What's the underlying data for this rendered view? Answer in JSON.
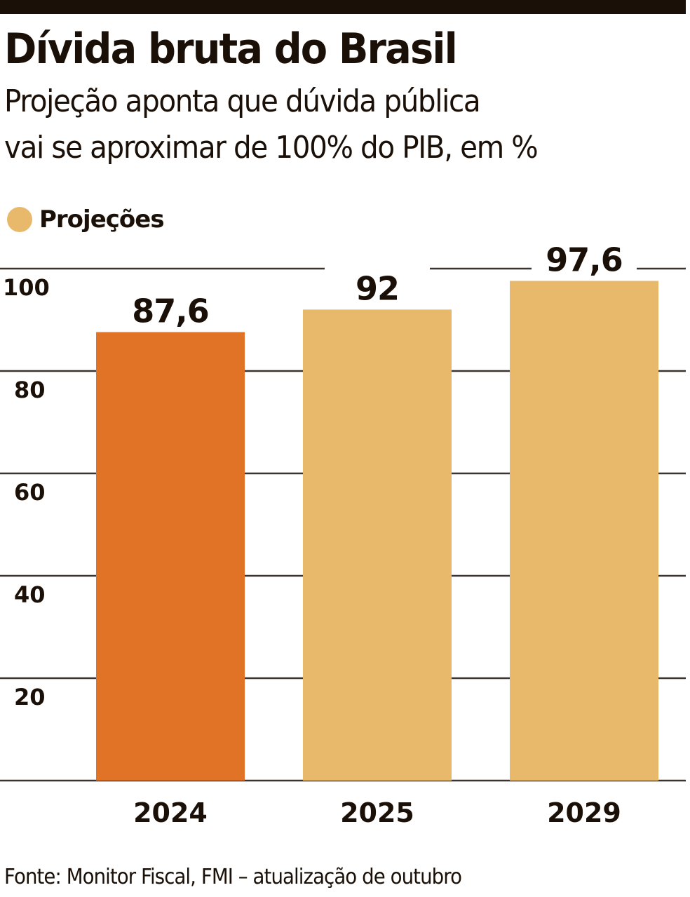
{
  "chart_data": {
    "type": "bar",
    "title": "Dívida bruta do Brasil",
    "subtitle": [
      "Projeção aponta que dúvida pública",
      "vai se aproximar de 100% do PIB, em %"
    ],
    "legend": {
      "label": "Projeções",
      "placement": "top-left"
    },
    "categories": [
      "2024",
      "2025",
      "2029"
    ],
    "values": [
      87.6,
      92,
      97.6
    ],
    "value_labels": [
      "87,6",
      "92",
      "97,6"
    ],
    "projection": [
      false,
      true,
      true
    ],
    "yticks": [
      20,
      40,
      60,
      80,
      100
    ],
    "ytick_labels": [
      "20",
      "40",
      "60",
      "80",
      "100"
    ],
    "ylim": [
      0,
      100
    ],
    "grid": true,
    "xlabel": "",
    "ylabel": "",
    "source": "Fonte: Monitor Fiscal, FMI – atualização de outubro"
  },
  "colors": {
    "actual": "#E07325",
    "projection": "#E9B96B",
    "text": "#1a1008",
    "grid": "#3a3330"
  }
}
